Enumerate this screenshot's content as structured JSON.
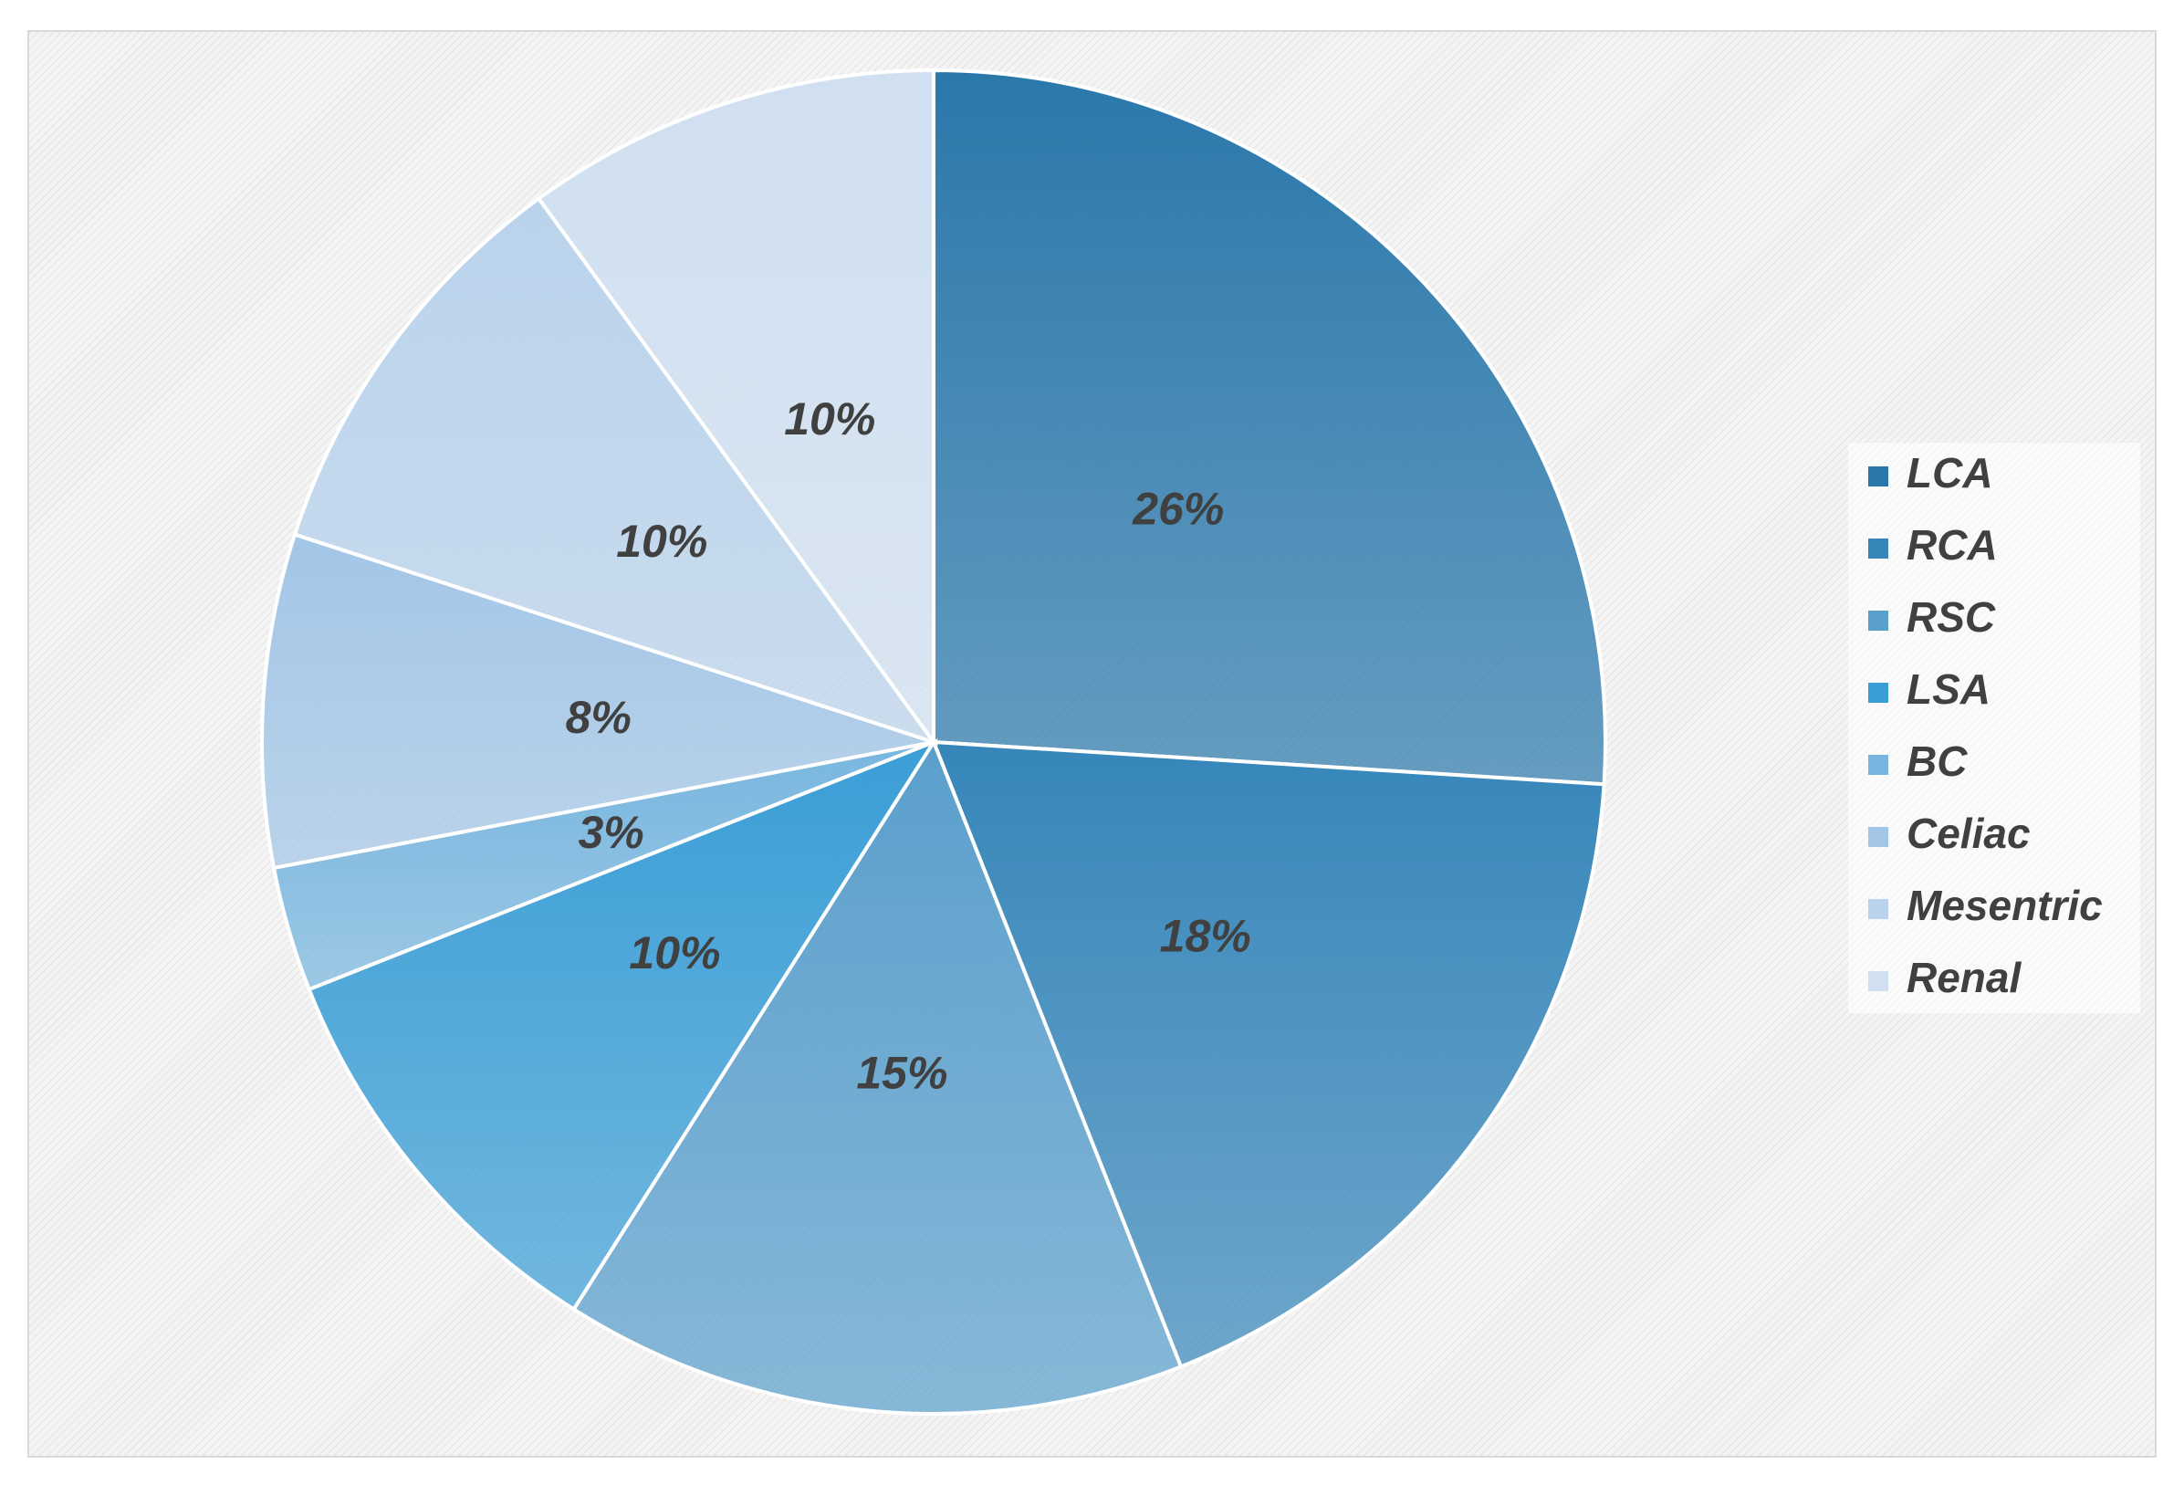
{
  "chart_data": {
    "type": "pie",
    "categories": [
      "LCA",
      "RCA",
      "RSC",
      "LSA",
      "BC",
      "Celiac",
      "Mesentric",
      "Renal"
    ],
    "values": [
      26,
      18,
      15,
      10,
      3,
      8,
      10,
      10
    ],
    "value_labels": [
      "26%",
      "18%",
      "15%",
      "10%",
      "3%",
      "8%",
      "10%",
      "10%"
    ],
    "colors": [
      "#2a78ab",
      "#3686ba",
      "#5a9fcc",
      "#3a9ed6",
      "#78b6df",
      "#a3c6e7",
      "#bad3ec",
      "#d0e0f1"
    ],
    "legend": "right"
  }
}
